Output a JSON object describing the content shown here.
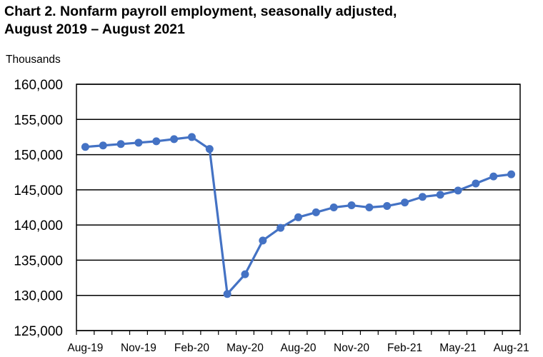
{
  "header": {
    "title_line1": "Chart 2. Nonfarm payroll employment, seasonally adjusted,",
    "title_line2": "August 2019 – August 2021",
    "unit_label": "Thousands"
  },
  "colors": {
    "series": "#4472C4",
    "grid": "#000000"
  },
  "chart_data": {
    "type": "line",
    "title": "Chart 2. Nonfarm payroll employment, seasonally adjusted, August 2019 – August 2021",
    "ylabel": "Thousands",
    "xlabel": "",
    "ylim": [
      125000,
      160000
    ],
    "yticks": [
      125000,
      130000,
      135000,
      140000,
      145000,
      150000,
      155000,
      160000
    ],
    "ytick_labels": [
      "125,000",
      "130,000",
      "135,000",
      "140,000",
      "145,000",
      "150,000",
      "155,000",
      "160,000"
    ],
    "x": [
      "Aug-19",
      "Sep-19",
      "Oct-19",
      "Nov-19",
      "Dec-19",
      "Jan-20",
      "Feb-20",
      "Mar-20",
      "Apr-20",
      "May-20",
      "Jun-20",
      "Jul-20",
      "Aug-20",
      "Sep-20",
      "Oct-20",
      "Nov-20",
      "Dec-20",
      "Jan-21",
      "Feb-21",
      "Mar-21",
      "Apr-21",
      "May-21",
      "Jun-21",
      "Jul-21",
      "Aug-21"
    ],
    "xtick_labels": [
      "Aug-19",
      "Nov-19",
      "Feb-20",
      "May-20",
      "Aug-20",
      "Nov-20",
      "Feb-21",
      "May-21",
      "Aug-21"
    ],
    "grid": true,
    "series": [
      {
        "values": [
          151100,
          151300,
          151500,
          151700,
          151900,
          152200,
          152500,
          150800,
          130200,
          133000,
          137800,
          139600,
          141100,
          141800,
          142500,
          142800,
          142500,
          142700,
          143200,
          144000,
          144300,
          144900,
          145900,
          146900,
          147200
        ]
      }
    ]
  }
}
